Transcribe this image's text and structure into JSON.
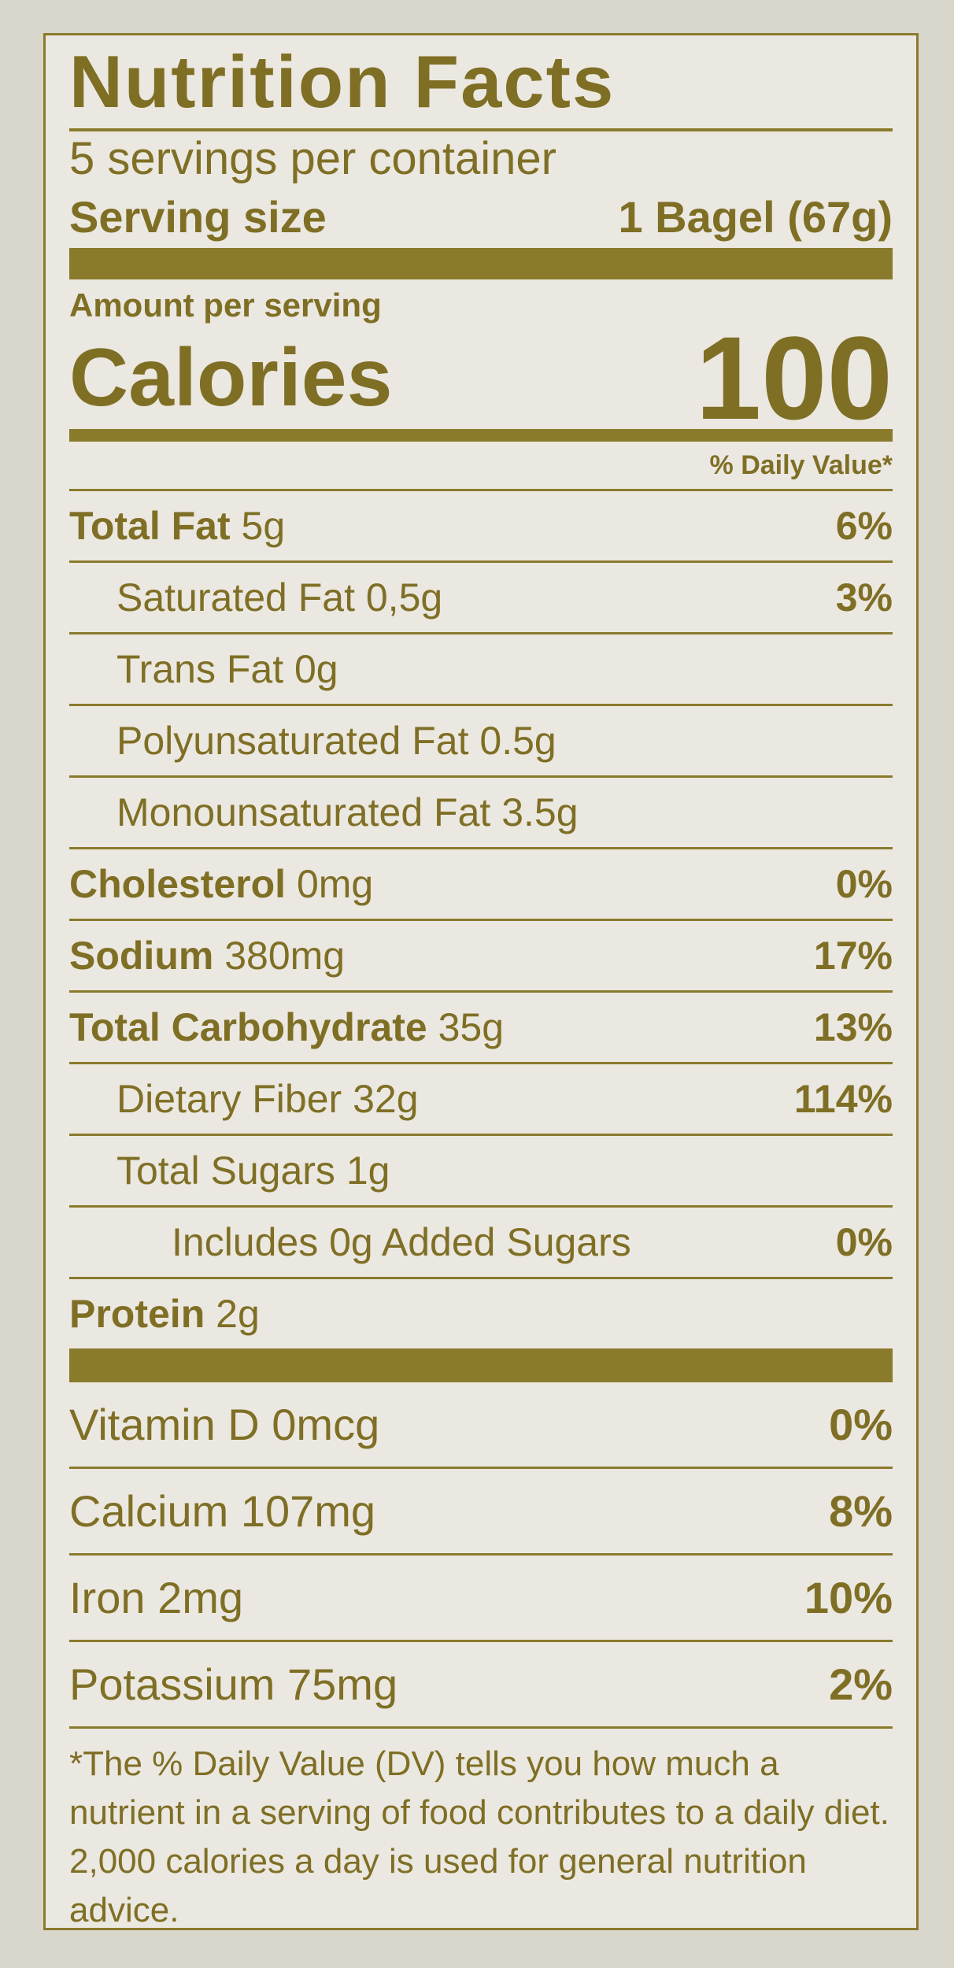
{
  "header": {
    "title": "Nutrition Facts",
    "servings": "5 servings per container",
    "serving_size": {
      "label": "Serving size",
      "value": "1 Bagel (67g)"
    }
  },
  "calories": {
    "amount_label": "Amount per serving",
    "label": "Calories",
    "value": "100"
  },
  "dv_header": "% Daily Value*",
  "nutrients": [
    {
      "name": "Total Fat",
      "amount": "5g",
      "dv": "6%",
      "sub": [
        {
          "name": "Saturated Fat",
          "amount": "0,5g",
          "dv": "3%"
        },
        {
          "name": "Trans Fat",
          "amount": "0g"
        },
        {
          "name": "Polyunsaturated Fat",
          "amount": "0.5g"
        },
        {
          "name": "Monounsaturated Fat",
          "amount": "3.5g"
        }
      ]
    },
    {
      "name": "Cholesterol",
      "amount": "0mg",
      "dv": "0%"
    },
    {
      "name": "Sodium",
      "amount": "380mg",
      "dv": "17%"
    },
    {
      "name": "Total Carbohydrate",
      "amount": "35g",
      "dv": "13%",
      "sub": [
        {
          "name": "Dietary Fiber",
          "amount": "32g",
          "dv": "114%"
        },
        {
          "name": "Total Sugars",
          "amount": "1g",
          "sub": [
            {
              "name": "Includes 0g Added Sugars",
              "dv": "0%"
            }
          ]
        }
      ]
    },
    {
      "name": "Protein",
      "amount": "2g"
    }
  ],
  "vitamins": [
    {
      "name": "Vitamin D",
      "amount": "0mcg",
      "dv": "0%"
    },
    {
      "name": "Calcium",
      "amount": "107mg",
      "dv": "8%"
    },
    {
      "name": "Iron",
      "amount": "2mg",
      "dv": "10%"
    },
    {
      "name": "Potassium",
      "amount": "75mg",
      "dv": "2%"
    }
  ],
  "footnote": "*The % Daily Value (DV) tells you how much a nutrient in a serving of food contributes to a daily diet. 2,000 calories a day is used for general nutrition advice."
}
